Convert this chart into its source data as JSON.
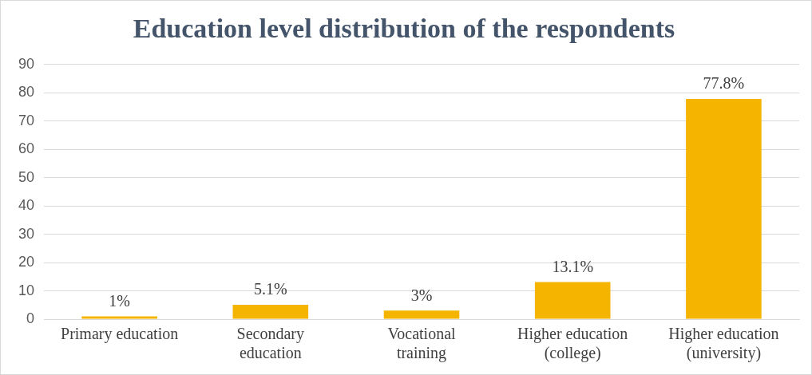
{
  "chart_data": {
    "type": "bar",
    "title": "Education level distribution of the respondents",
    "categories": [
      "Primary education",
      "Secondary education",
      "Vocational training",
      "Higher education (college)",
      "Higher education (university)"
    ],
    "values": [
      1,
      5.1,
      3,
      13.1,
      77.8
    ],
    "value_labels": [
      "1%",
      "5.1%",
      "3%",
      "13.1%",
      "77.8%"
    ],
    "color": "#f5b400",
    "ylim": [
      0,
      90
    ],
    "yticks": [
      0,
      10,
      20,
      30,
      40,
      50,
      60,
      70,
      80,
      90
    ],
    "grid": "y",
    "legend": false
  }
}
